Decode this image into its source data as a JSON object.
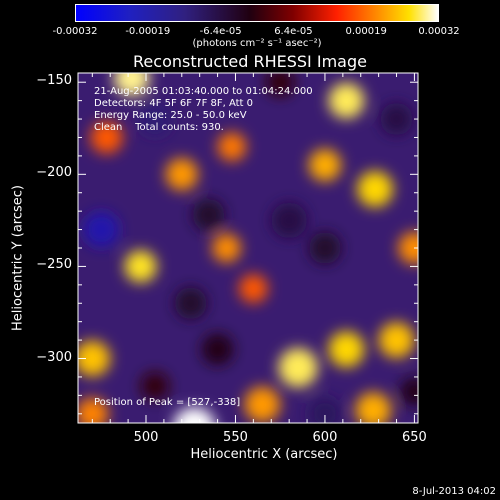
{
  "colorbar": {
    "ticks": [
      "-0.00032",
      "-0.00019",
      "-6.4e-05",
      "6.4e-05",
      "0.00019",
      "0.00032"
    ],
    "unit": "(photons cm⁻² s⁻¹ asec⁻²)"
  },
  "chart_data": {
    "type": "heatmap",
    "title": "Reconstructed RHESSI Image",
    "xlabel": "Heliocentric X (arcsec)",
    "ylabel": "Heliocentric Y (arcsec)",
    "xlim": [
      462,
      652
    ],
    "ylim": [
      -335,
      -145
    ],
    "xticks": [
      500,
      550,
      600,
      650
    ],
    "yticks": [
      -150,
      -200,
      -250,
      -300
    ],
    "zlim": [
      -0.00032,
      0.00032
    ],
    "colormap": [
      "#0000ff",
      "#302080",
      "#200010",
      "#800000",
      "#ff2000",
      "#ff8000",
      "#ffe000",
      "#ffffff"
    ],
    "sources": [
      {
        "x": 527,
        "y": -338,
        "v": 0.00032,
        "s": 12
      },
      {
        "x": 492,
        "y": -148,
        "v": 0.00028,
        "s": 10
      },
      {
        "x": 478,
        "y": -180,
        "v": 0.0001,
        "s": 9
      },
      {
        "x": 612,
        "y": -160,
        "v": 0.00026,
        "s": 10
      },
      {
        "x": 628,
        "y": -208,
        "v": 0.00022,
        "s": 10
      },
      {
        "x": 600,
        "y": -195,
        "v": 0.00018,
        "s": 9
      },
      {
        "x": 520,
        "y": -200,
        "v": 0.00016,
        "s": 9
      },
      {
        "x": 548,
        "y": -185,
        "v": 0.00013,
        "s": 8
      },
      {
        "x": 497,
        "y": -250,
        "v": 0.00024,
        "s": 9
      },
      {
        "x": 545,
        "y": -240,
        "v": 0.00015,
        "s": 8
      },
      {
        "x": 560,
        "y": -262,
        "v": 0.0001,
        "s": 8
      },
      {
        "x": 585,
        "y": -305,
        "v": 0.00026,
        "s": 11
      },
      {
        "x": 612,
        "y": -295,
        "v": 0.00022,
        "s": 10
      },
      {
        "x": 640,
        "y": -290,
        "v": 0.0002,
        "s": 10
      },
      {
        "x": 627,
        "y": -328,
        "v": 0.00018,
        "s": 10
      },
      {
        "x": 470,
        "y": -300,
        "v": 0.0002,
        "s": 10
      },
      {
        "x": 565,
        "y": -325,
        "v": 0.00016,
        "s": 10
      },
      {
        "x": 470,
        "y": -330,
        "v": 0.00014,
        "s": 9
      },
      {
        "x": 650,
        "y": -240,
        "v": 0.00015,
        "s": 9
      },
      {
        "x": 505,
        "y": -170,
        "v": -0.00022,
        "s": 9
      },
      {
        "x": 475,
        "y": -230,
        "v": -0.00026,
        "s": 10
      },
      {
        "x": 535,
        "y": -222,
        "v": -0.00016,
        "s": 9
      },
      {
        "x": 580,
        "y": -225,
        "v": -0.00018,
        "s": 10
      },
      {
        "x": 600,
        "y": -240,
        "v": -0.00016,
        "s": 9
      },
      {
        "x": 640,
        "y": -170,
        "v": -0.00018,
        "s": 9
      },
      {
        "x": 525,
        "y": -270,
        "v": -0.00016,
        "s": 9
      },
      {
        "x": 540,
        "y": -295,
        "v": -0.00014,
        "s": 9
      },
      {
        "x": 600,
        "y": -330,
        "v": -0.0002,
        "s": 9
      },
      {
        "x": 575,
        "y": -150,
        "v": -0.00012,
        "s": 8
      },
      {
        "x": 650,
        "y": -318,
        "v": -0.00014,
        "s": 8
      },
      {
        "x": 505,
        "y": -315,
        "v": -0.00012,
        "s": 8
      }
    ]
  },
  "info": {
    "line1": "21-Aug-2005 01:03:40.000 to 01:04:24.000",
    "line2": "Detectors: 4F 5F 6F 7F 8F, Att 0",
    "line3": "Energy Range: 25.0 - 50.0 keV",
    "line4": "Clean    Total counts: 930.",
    "peak": "Position of Peak = [527,-338]"
  },
  "timestamp": "8-Jul-2013 04:02"
}
